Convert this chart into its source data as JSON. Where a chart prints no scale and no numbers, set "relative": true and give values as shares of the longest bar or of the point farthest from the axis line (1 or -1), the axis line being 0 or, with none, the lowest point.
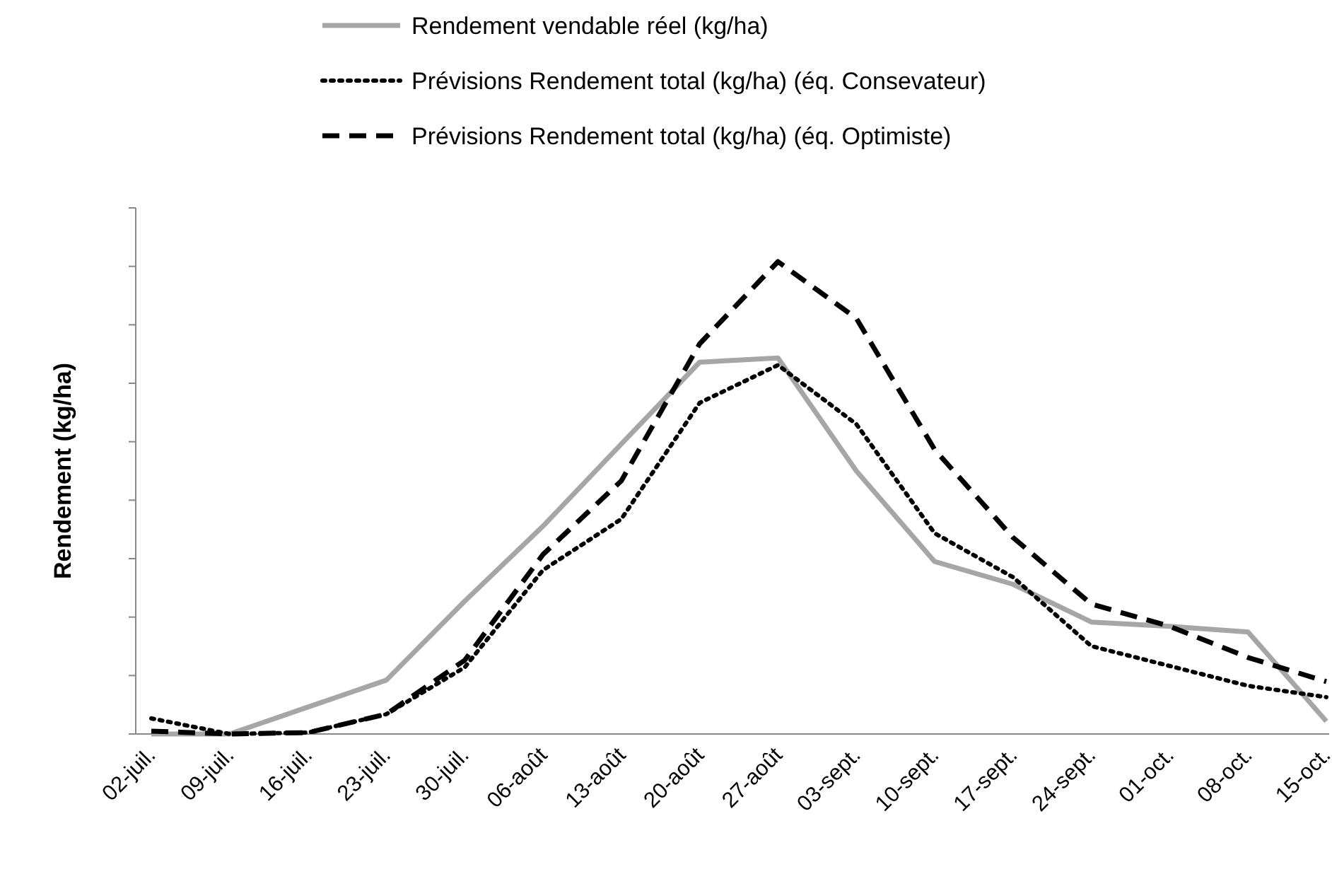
{
  "chart_data": {
    "type": "line",
    "ylabel": "Rendement (kg/ha)",
    "relative": true,
    "legend": "top",
    "categories": [
      "02-juil.",
      "09-juil.",
      "16-juil.",
      "23-juil.",
      "30-juil.",
      "06-août",
      "13-août",
      "20-août",
      "27-août",
      "03-sept.",
      "10-sept.",
      "17-sept.",
      "24-sept.",
      "01-oct.",
      "08-oct.",
      "15-oct."
    ],
    "series": [
      {
        "name": "Rendement vendable réel (kg/ha)",
        "color": "#a6a6a6",
        "line_style": "solid",
        "values": [
          0,
          0,
          0.057,
          0.114,
          0.281,
          0.44,
          0.614,
          0.787,
          0.796,
          0.557,
          0.365,
          0.317,
          0.237,
          0.228,
          0.216,
          0.027
        ]
      },
      {
        "name": "Prévisions Rendement total (kg/ha) (éq. Consevateur)",
        "color": "#000000",
        "line_style": "dotted",
        "values": [
          0.033,
          0,
          0.003,
          0.042,
          0.141,
          0.347,
          0.455,
          0.701,
          0.781,
          0.656,
          0.425,
          0.332,
          0.186,
          0.144,
          0.102,
          0.078
        ]
      },
      {
        "name": "Prévisions Rendement total (kg/ha) (éq. Optimiste)",
        "color": "#000000",
        "line_style": "dashed",
        "values": [
          0.006,
          0,
          0.003,
          0.042,
          0.156,
          0.38,
          0.536,
          0.826,
          1,
          0.88,
          0.602,
          0.416,
          0.275,
          0.228,
          0.162,
          0.111
        ]
      }
    ]
  }
}
